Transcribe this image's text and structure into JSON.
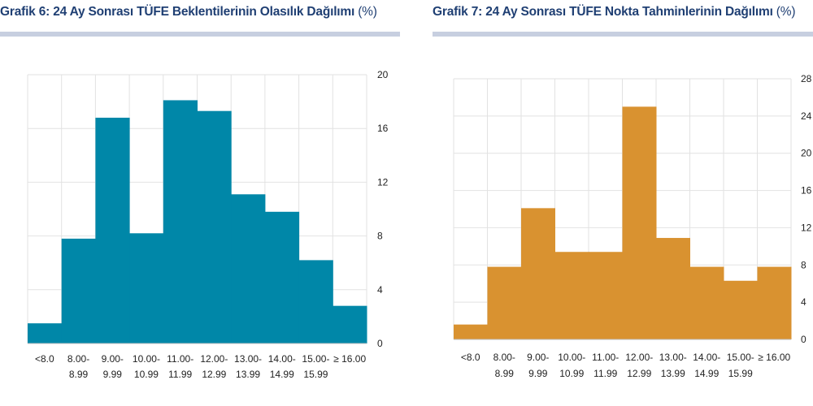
{
  "charts": [
    {
      "title": "Grafik 6: 24 Ay Sonrası TÜFE Beklentilerinin Olasılık Dağılımı",
      "unit": "(%)",
      "color": "#0087a8"
    },
    {
      "title": "Grafik 7: 24 Ay Sonrası TÜFE Nokta Tahminlerinin Dağılımı",
      "unit": "(%)",
      "color": "#d99230"
    }
  ],
  "chart_data": [
    {
      "type": "bar",
      "title": "Grafik 6: 24 Ay Sonrası TÜFE Beklentilerinin Olasılık Dağılımı (%)",
      "categories": [
        [
          "<8.0"
        ],
        [
          "8.00-",
          "8.99"
        ],
        [
          "9.00-",
          "9.99"
        ],
        [
          "10.00-",
          "10.99"
        ],
        [
          "11.00-",
          "11.99"
        ],
        [
          "12.00-",
          "12.99"
        ],
        [
          "13.00-",
          "13.99"
        ],
        [
          "14.00-",
          "14.99"
        ],
        [
          "15.00-",
          "15.99"
        ],
        [
          "≥ 16.00"
        ]
      ],
      "values": [
        1.5,
        7.8,
        16.8,
        8.2,
        18.1,
        17.3,
        11.1,
        9.8,
        6.2,
        2.8
      ],
      "yticks": [
        0,
        4,
        8,
        12,
        16,
        20
      ],
      "ylim": [
        0,
        20
      ],
      "y_axis_side": "right",
      "grid": true,
      "color": "#0087a8"
    },
    {
      "type": "bar",
      "title": "Grafik 7: 24 Ay Sonrası TÜFE Nokta Tahminlerinin Dağılımı (%)",
      "categories": [
        [
          "<8.0"
        ],
        [
          "8.00-",
          "8.99"
        ],
        [
          "9.00-",
          "9.99"
        ],
        [
          "10.00-",
          "10.99"
        ],
        [
          "11.00-",
          "11.99"
        ],
        [
          "12.00-",
          "12.99"
        ],
        [
          "13.00-",
          "13.99"
        ],
        [
          "14.00-",
          "14.99"
        ],
        [
          "15.00-",
          "15.99"
        ],
        [
          "≥ 16.00"
        ]
      ],
      "values": [
        1.6,
        7.8,
        14.1,
        9.4,
        9.4,
        25.0,
        10.9,
        7.8,
        6.3,
        7.8
      ],
      "yticks": [
        0,
        4,
        8,
        12,
        16,
        20,
        24,
        28
      ],
      "ylim": [
        0,
        28
      ],
      "y_axis_side": "right",
      "grid": true,
      "color": "#d99230"
    }
  ]
}
